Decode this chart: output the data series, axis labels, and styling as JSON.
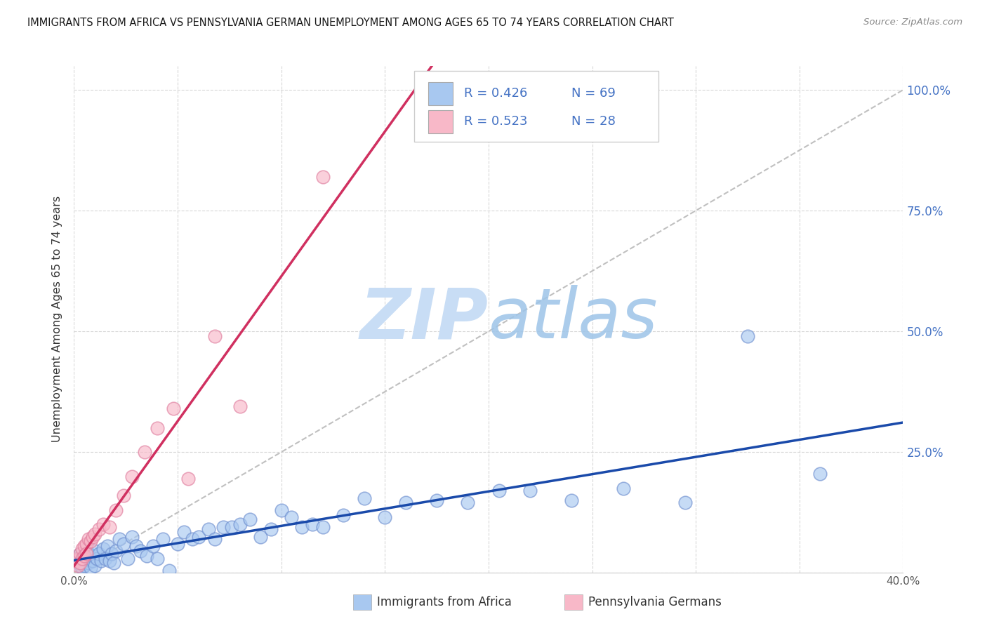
{
  "title": "IMMIGRANTS FROM AFRICA VS PENNSYLVANIA GERMAN UNEMPLOYMENT AMONG AGES 65 TO 74 YEARS CORRELATION CHART",
  "source": "Source: ZipAtlas.com",
  "ylabel": "Unemployment Among Ages 65 to 74 years",
  "xlim": [
    0.0,
    0.4
  ],
  "ylim": [
    0.0,
    1.05
  ],
  "blue_color": "#a8c8f0",
  "blue_edge": "#7090d0",
  "pink_color": "#f8b8c8",
  "pink_edge": "#e080a0",
  "blue_line_color": "#1a4aaa",
  "pink_line_color": "#d03060",
  "dashed_line_color": "#c0c0c0",
  "watermark_color": "#c8ddf5",
  "r1": "0.426",
  "n1": "69",
  "r2": "0.523",
  "n2": "28",
  "legend_text_color": "#4472c4",
  "right_axis_color": "#4472c4",
  "africa_x": [
    0.001,
    0.002,
    0.003,
    0.003,
    0.004,
    0.004,
    0.005,
    0.005,
    0.006,
    0.006,
    0.007,
    0.007,
    0.008,
    0.008,
    0.009,
    0.009,
    0.01,
    0.01,
    0.011,
    0.012,
    0.013,
    0.014,
    0.015,
    0.016,
    0.017,
    0.018,
    0.019,
    0.02,
    0.022,
    0.024,
    0.026,
    0.028,
    0.03,
    0.032,
    0.035,
    0.038,
    0.04,
    0.043,
    0.046,
    0.05,
    0.053,
    0.057,
    0.06,
    0.065,
    0.068,
    0.072,
    0.076,
    0.08,
    0.085,
    0.09,
    0.095,
    0.1,
    0.105,
    0.11,
    0.115,
    0.12,
    0.13,
    0.14,
    0.15,
    0.16,
    0.175,
    0.19,
    0.205,
    0.22,
    0.24,
    0.265,
    0.295,
    0.325,
    0.36
  ],
  "africa_y": [
    0.03,
    0.02,
    0.015,
    0.04,
    0.025,
    0.01,
    0.035,
    0.015,
    0.03,
    0.05,
    0.02,
    0.04,
    0.025,
    0.01,
    0.035,
    0.025,
    0.045,
    0.015,
    0.03,
    0.04,
    0.025,
    0.05,
    0.03,
    0.055,
    0.025,
    0.04,
    0.02,
    0.045,
    0.07,
    0.06,
    0.03,
    0.075,
    0.055,
    0.045,
    0.035,
    0.055,
    0.03,
    0.07,
    0.005,
    0.06,
    0.085,
    0.07,
    0.075,
    0.09,
    0.07,
    0.095,
    0.095,
    0.1,
    0.11,
    0.075,
    0.09,
    0.13,
    0.115,
    0.095,
    0.1,
    0.095,
    0.12,
    0.155,
    0.115,
    0.145,
    0.15,
    0.145,
    0.17,
    0.17,
    0.15,
    0.175,
    0.145,
    0.49,
    0.205
  ],
  "penn_x": [
    0.001,
    0.002,
    0.002,
    0.003,
    0.003,
    0.004,
    0.004,
    0.005,
    0.005,
    0.006,
    0.006,
    0.007,
    0.008,
    0.009,
    0.01,
    0.012,
    0.014,
    0.017,
    0.02,
    0.024,
    0.028,
    0.034,
    0.04,
    0.048,
    0.055,
    0.068,
    0.08,
    0.12
  ],
  "penn_y": [
    0.025,
    0.03,
    0.015,
    0.04,
    0.02,
    0.05,
    0.03,
    0.055,
    0.035,
    0.06,
    0.04,
    0.07,
    0.065,
    0.075,
    0.08,
    0.09,
    0.1,
    0.095,
    0.13,
    0.16,
    0.2,
    0.25,
    0.3,
    0.34,
    0.195,
    0.49,
    0.345,
    0.82
  ]
}
